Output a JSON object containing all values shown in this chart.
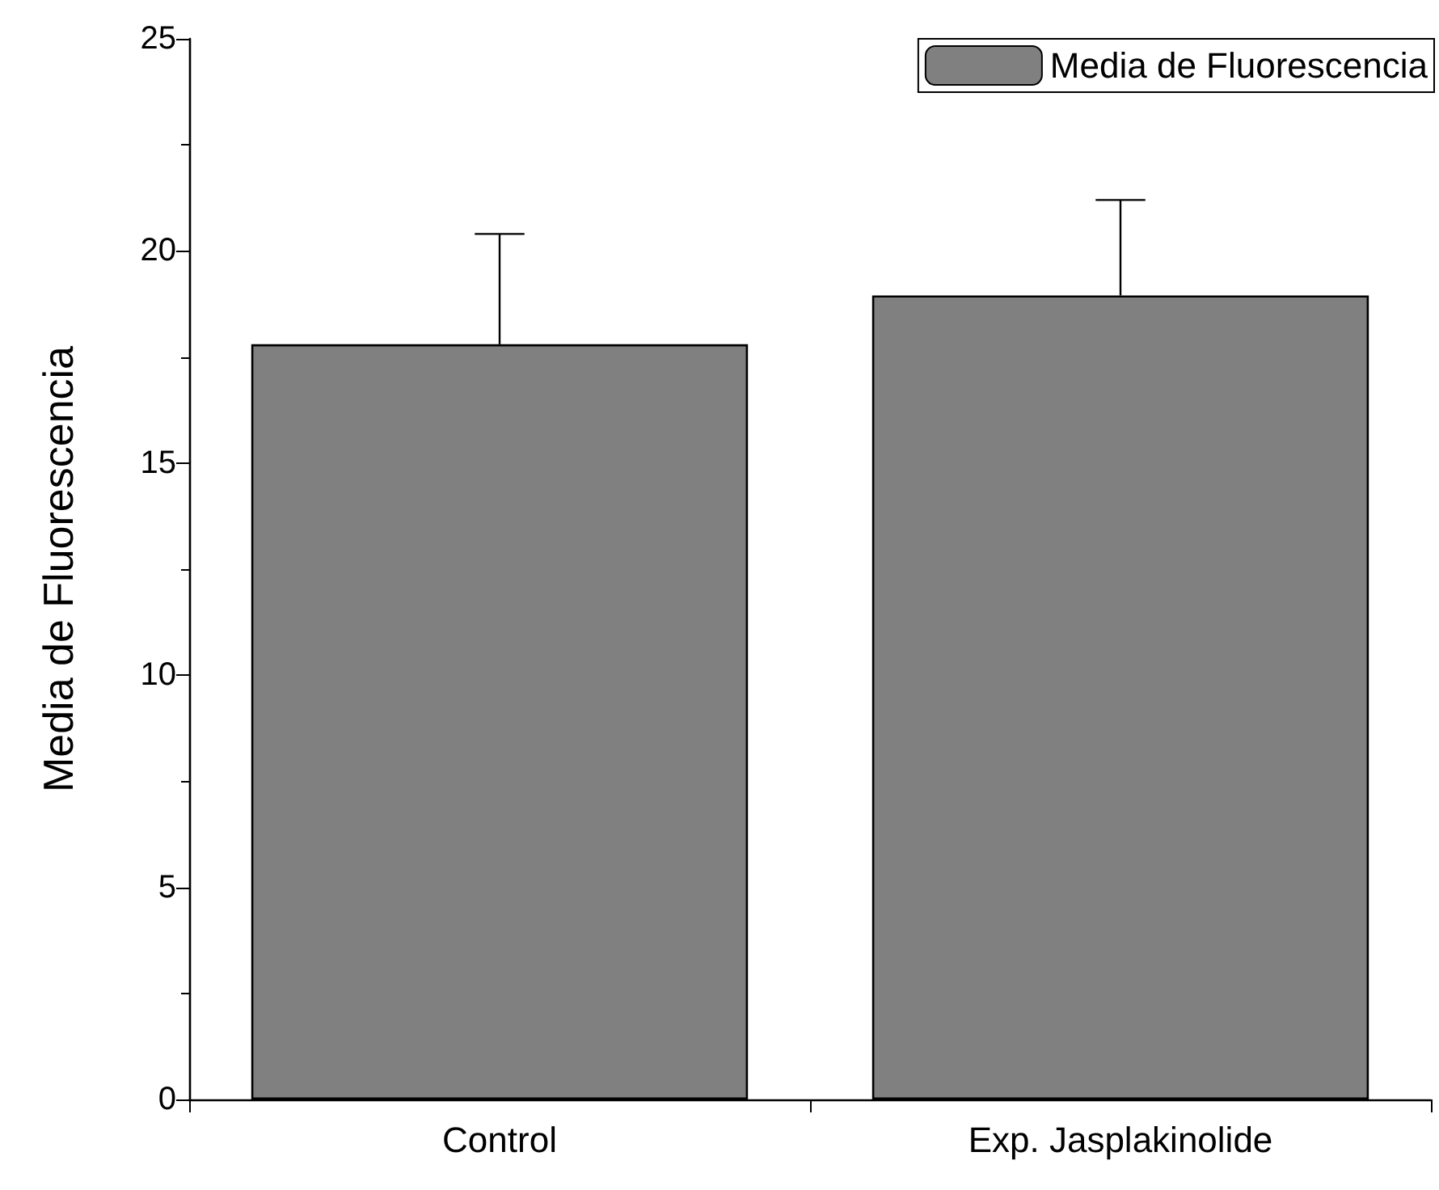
{
  "chart_data": {
    "type": "bar",
    "ylabel": "Media de Fluorescencia",
    "categories": [
      "Control",
      "Exp. Jasplakinolide"
    ],
    "series": [
      {
        "name": "Media de Fluorescencia",
        "color": "#808080",
        "values": [
          17.8,
          18.95
        ],
        "errors": [
          [
            17.8,
            20.4
          ],
          [
            18.95,
            21.2
          ]
        ]
      }
    ],
    "ylim": [
      0,
      25
    ],
    "yticks": [
      0,
      5,
      10,
      15,
      20,
      25
    ],
    "grid": false,
    "legend": "top right"
  }
}
